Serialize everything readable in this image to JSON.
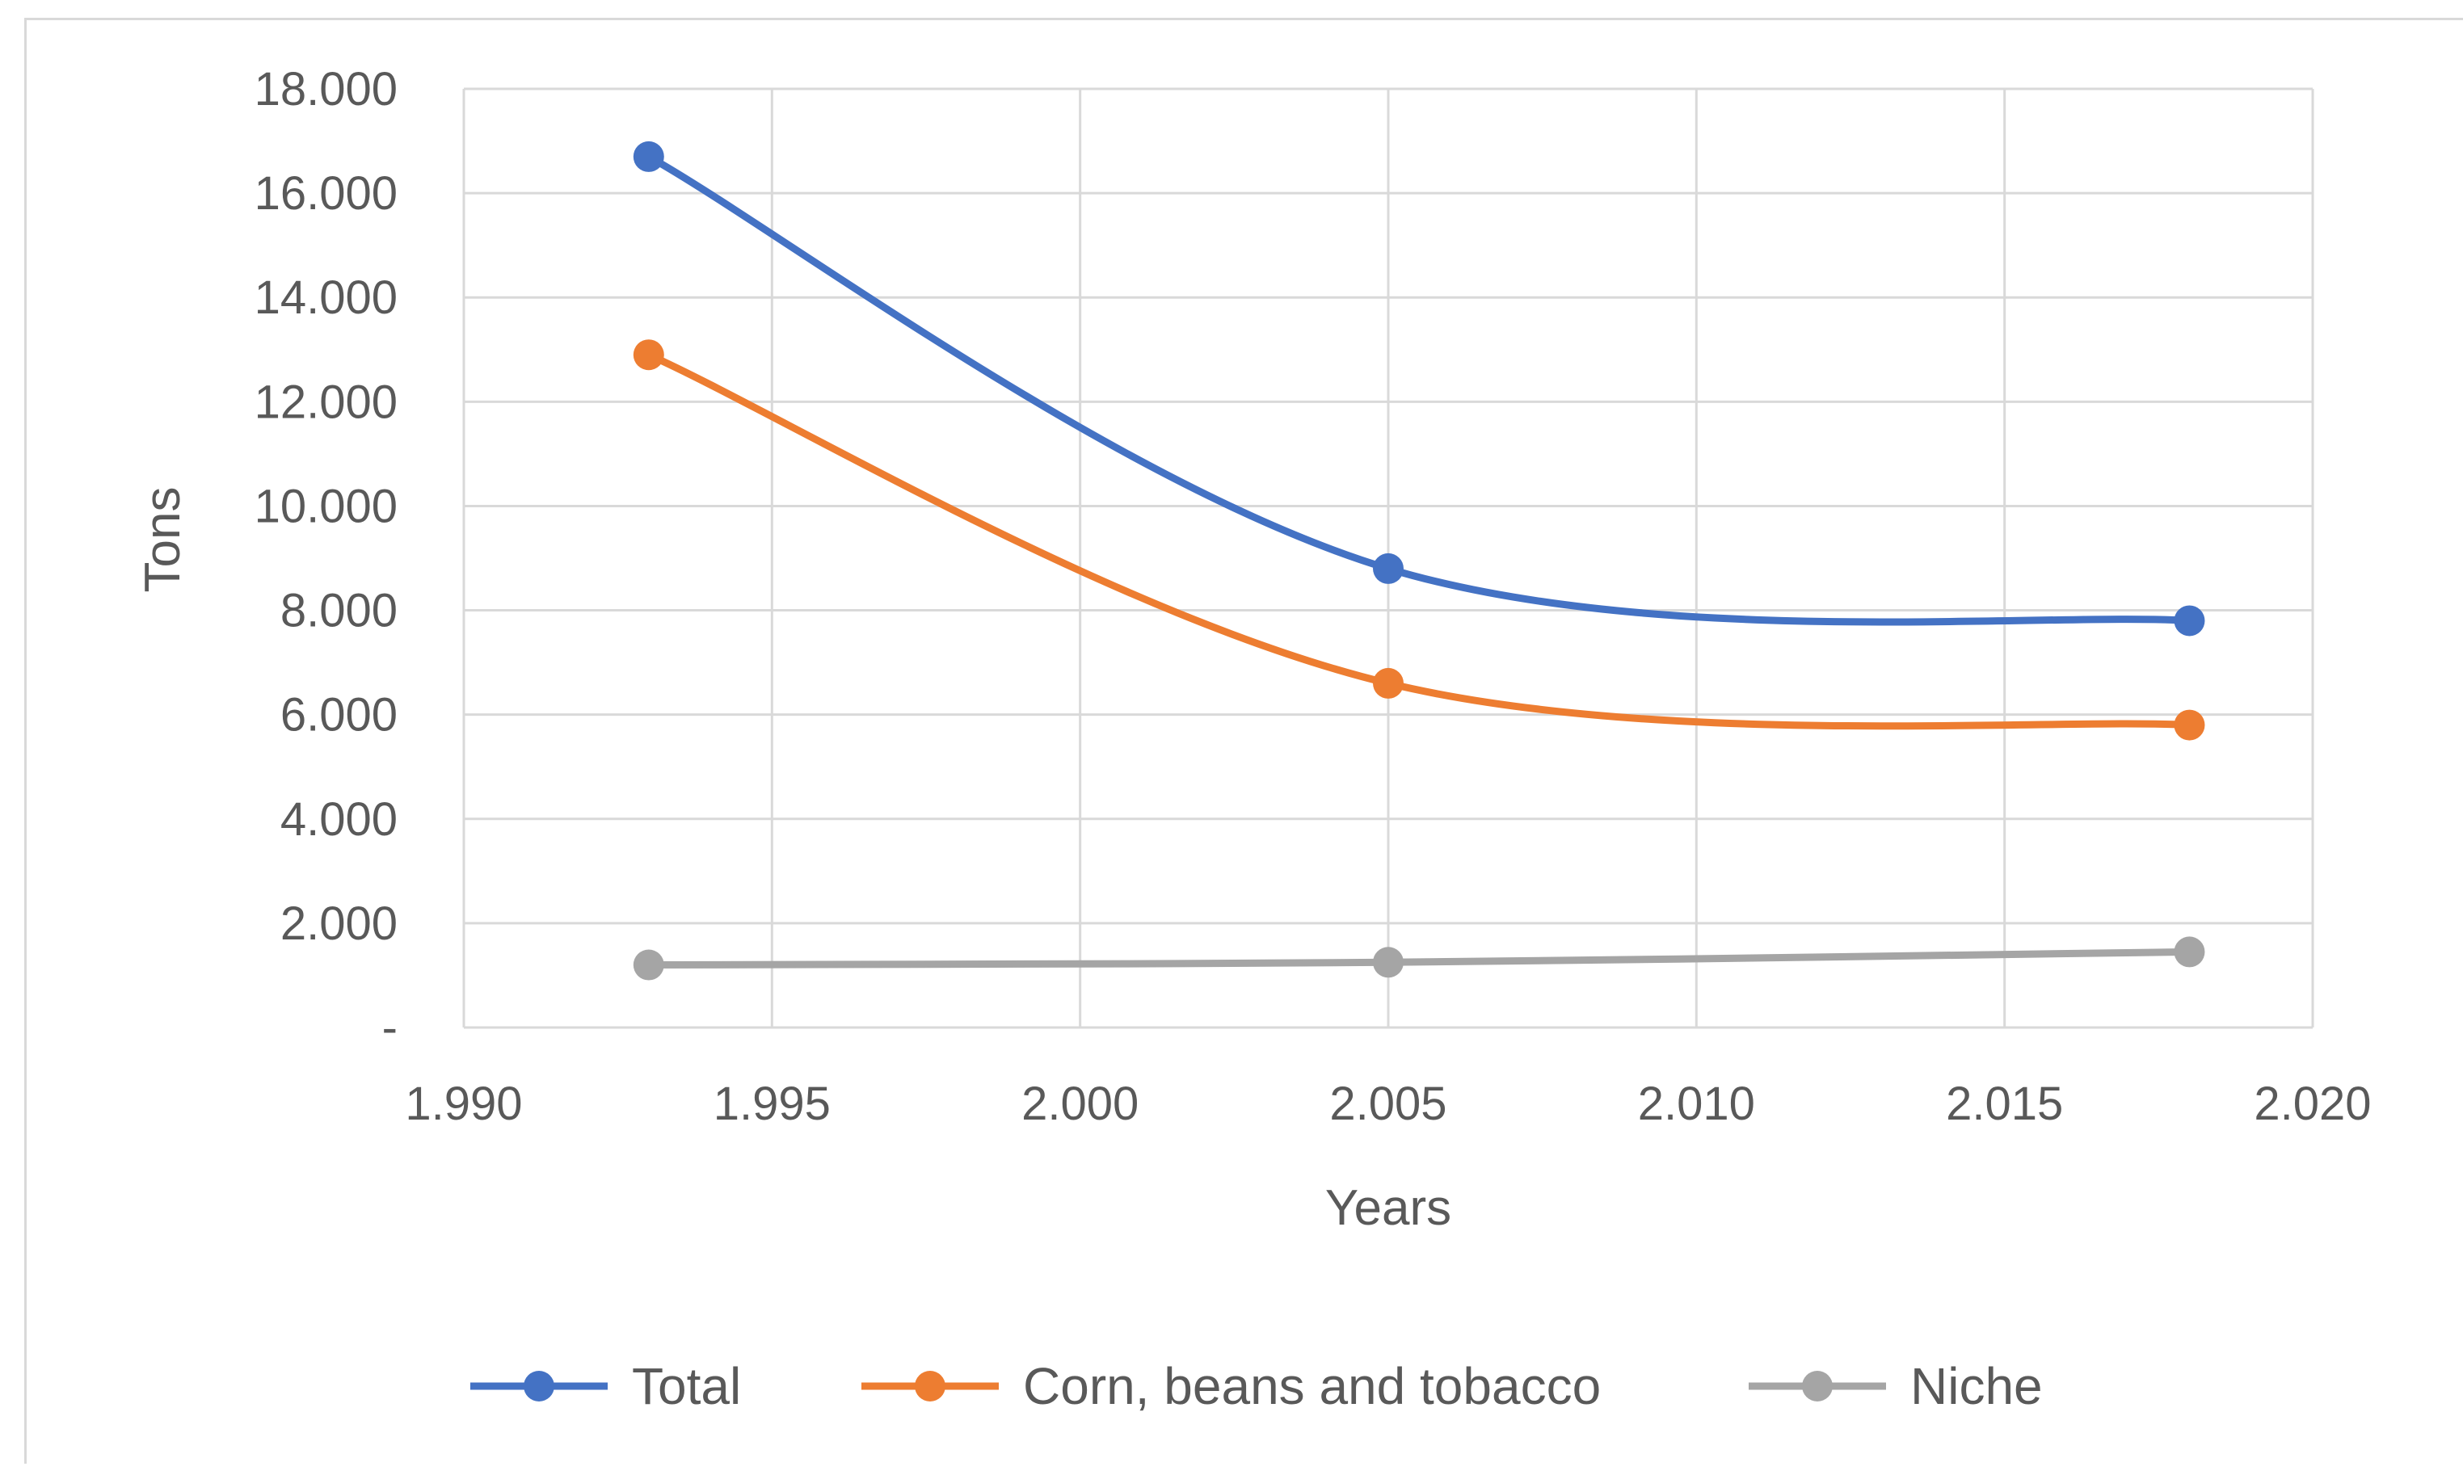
{
  "chart_data": {
    "type": "line",
    "title": "",
    "xlabel": "Years",
    "ylabel": "Tons",
    "xlim": [
      1990,
      2020
    ],
    "ylim": [
      0,
      18000
    ],
    "x_ticks": [
      1990,
      1995,
      2000,
      2005,
      2010,
      2015,
      2020
    ],
    "x_tick_labels": [
      "1.990",
      "1.995",
      "2.000",
      "2.005",
      "2.010",
      "2.015",
      "2.020"
    ],
    "y_ticks": [
      0,
      2000,
      4000,
      6000,
      8000,
      10000,
      12000,
      14000,
      16000,
      18000
    ],
    "y_tick_labels": [
      "-",
      "2.000",
      "4.000",
      "6.000",
      "8.000",
      "10.000",
      "12.000",
      "14.000",
      "16.000",
      "18.000"
    ],
    "grid": true,
    "smooth": true,
    "legend_position": "bottom",
    "x": [
      1993,
      2005,
      2018
    ],
    "series": [
      {
        "name": "Total",
        "color": "#4472c4",
        "values": [
          16700,
          8800,
          7800
        ]
      },
      {
        "name": "Corn, beans and tobacco",
        "color": "#ed7d31",
        "values": [
          12900,
          6600,
          5800
        ]
      },
      {
        "name": "Niche",
        "color": "#a5a5a5",
        "values": [
          1200,
          1250,
          1450
        ]
      }
    ]
  }
}
